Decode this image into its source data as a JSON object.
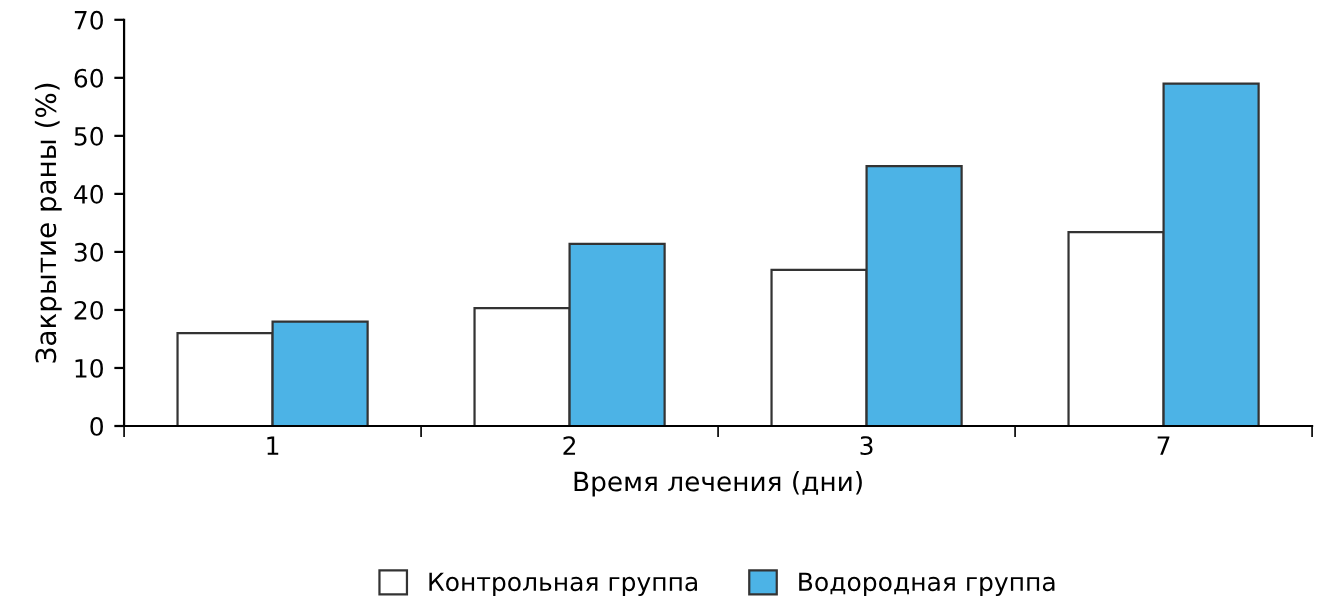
{
  "chart_data": {
    "type": "bar",
    "xlabel": "Время лечения (дни)",
    "ylabel": "Закрытие раны (%)",
    "categories": [
      "1",
      "2",
      "3",
      "7"
    ],
    "series": [
      {
        "name": "Контрольная группа",
        "color": "#ffffff",
        "values": [
          16,
          20.3,
          26.9,
          33.4
        ]
      },
      {
        "name": "Водородная группа",
        "color": "#4cb3e6",
        "values": [
          18,
          31.4,
          44.8,
          59
        ]
      }
    ],
    "ylim": [
      0,
      70
    ],
    "yticks": [
      0,
      10,
      20,
      30,
      40,
      50,
      60,
      70
    ],
    "grid": false,
    "legend": "bottom"
  }
}
